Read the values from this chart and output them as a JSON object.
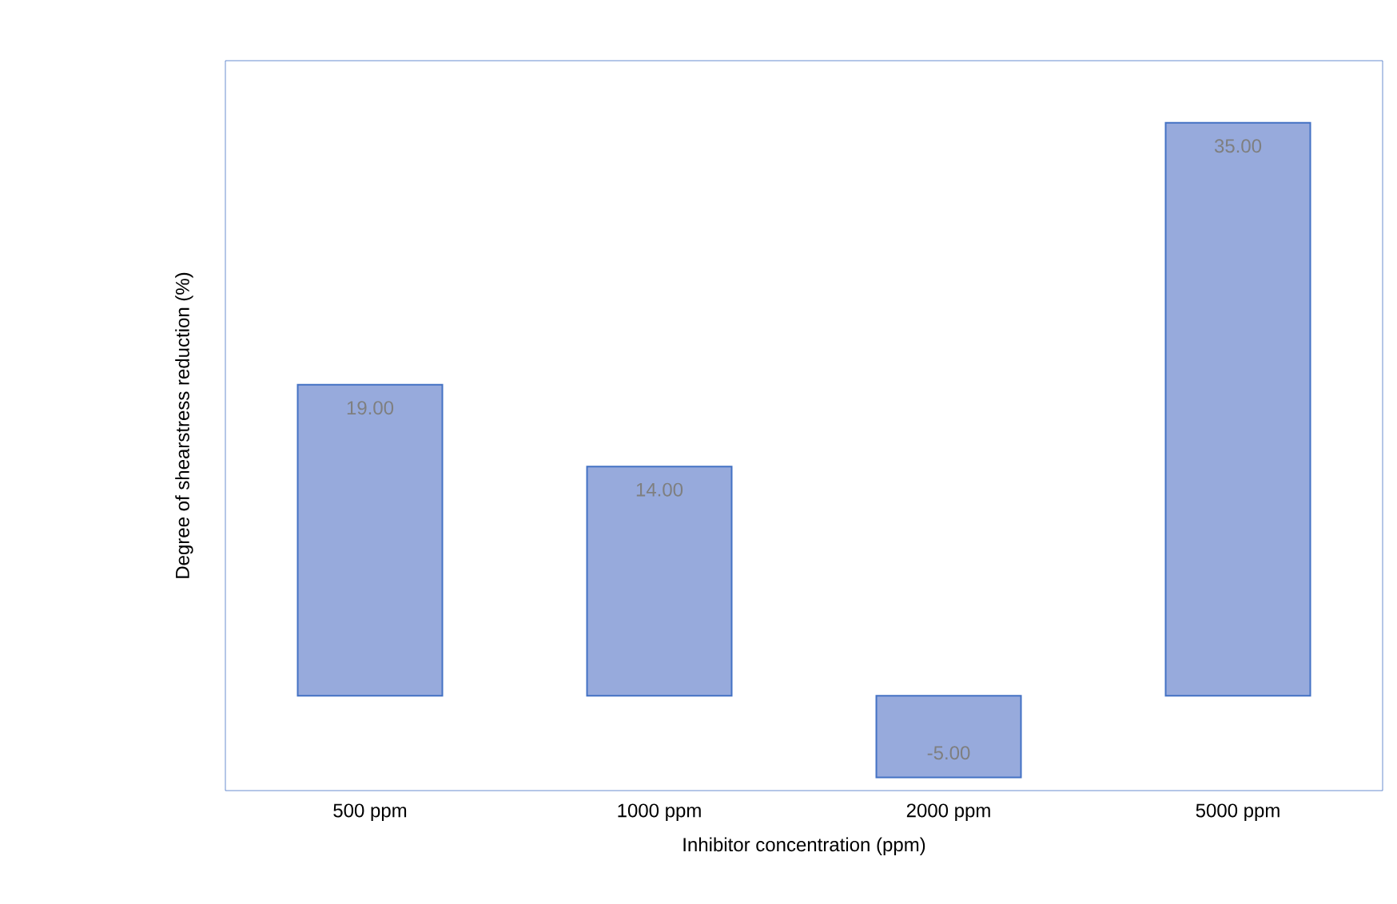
{
  "chart_data": {
    "type": "bar",
    "xlabel": "Inhibitor concentration (ppm)",
    "ylabel": "Degree of shearstress reduction (%)",
    "categories": [
      "500 ppm",
      "1000 ppm",
      "2000 ppm",
      "5000 ppm"
    ],
    "values": [
      19,
      14,
      -5,
      35
    ],
    "value_labels": [
      "19.00",
      "14.00",
      "-5.00",
      "35.00"
    ],
    "color": "#97aadc",
    "ylim": [
      -5.8,
      38.8
    ]
  }
}
